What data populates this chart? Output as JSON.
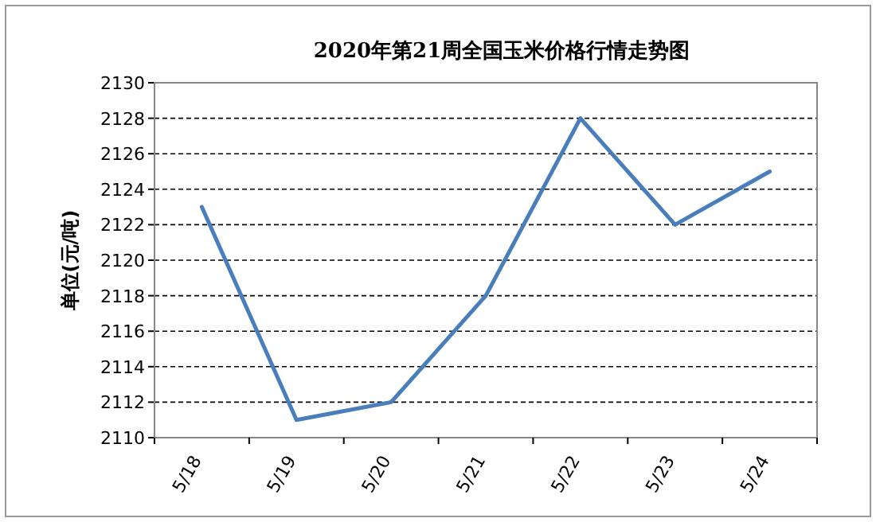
{
  "chart_data": {
    "type": "line",
    "title": "2020年第21周全国玉米价格行情走势图",
    "ylabel": "单位(元/吨)",
    "categories": [
      "5/18",
      "5/19",
      "5/20",
      "5/21",
      "5/22",
      "5/23",
      "5/24"
    ],
    "values": [
      2123,
      2111,
      2112,
      2118,
      2128,
      2122,
      2125
    ],
    "color": "#4a7ebb",
    "ylim": [
      2110,
      2130
    ],
    "yticks": [
      2110,
      2112,
      2114,
      2116,
      2118,
      2120,
      2122,
      2124,
      2126,
      2128,
      2130
    ],
    "grid": "y"
  }
}
